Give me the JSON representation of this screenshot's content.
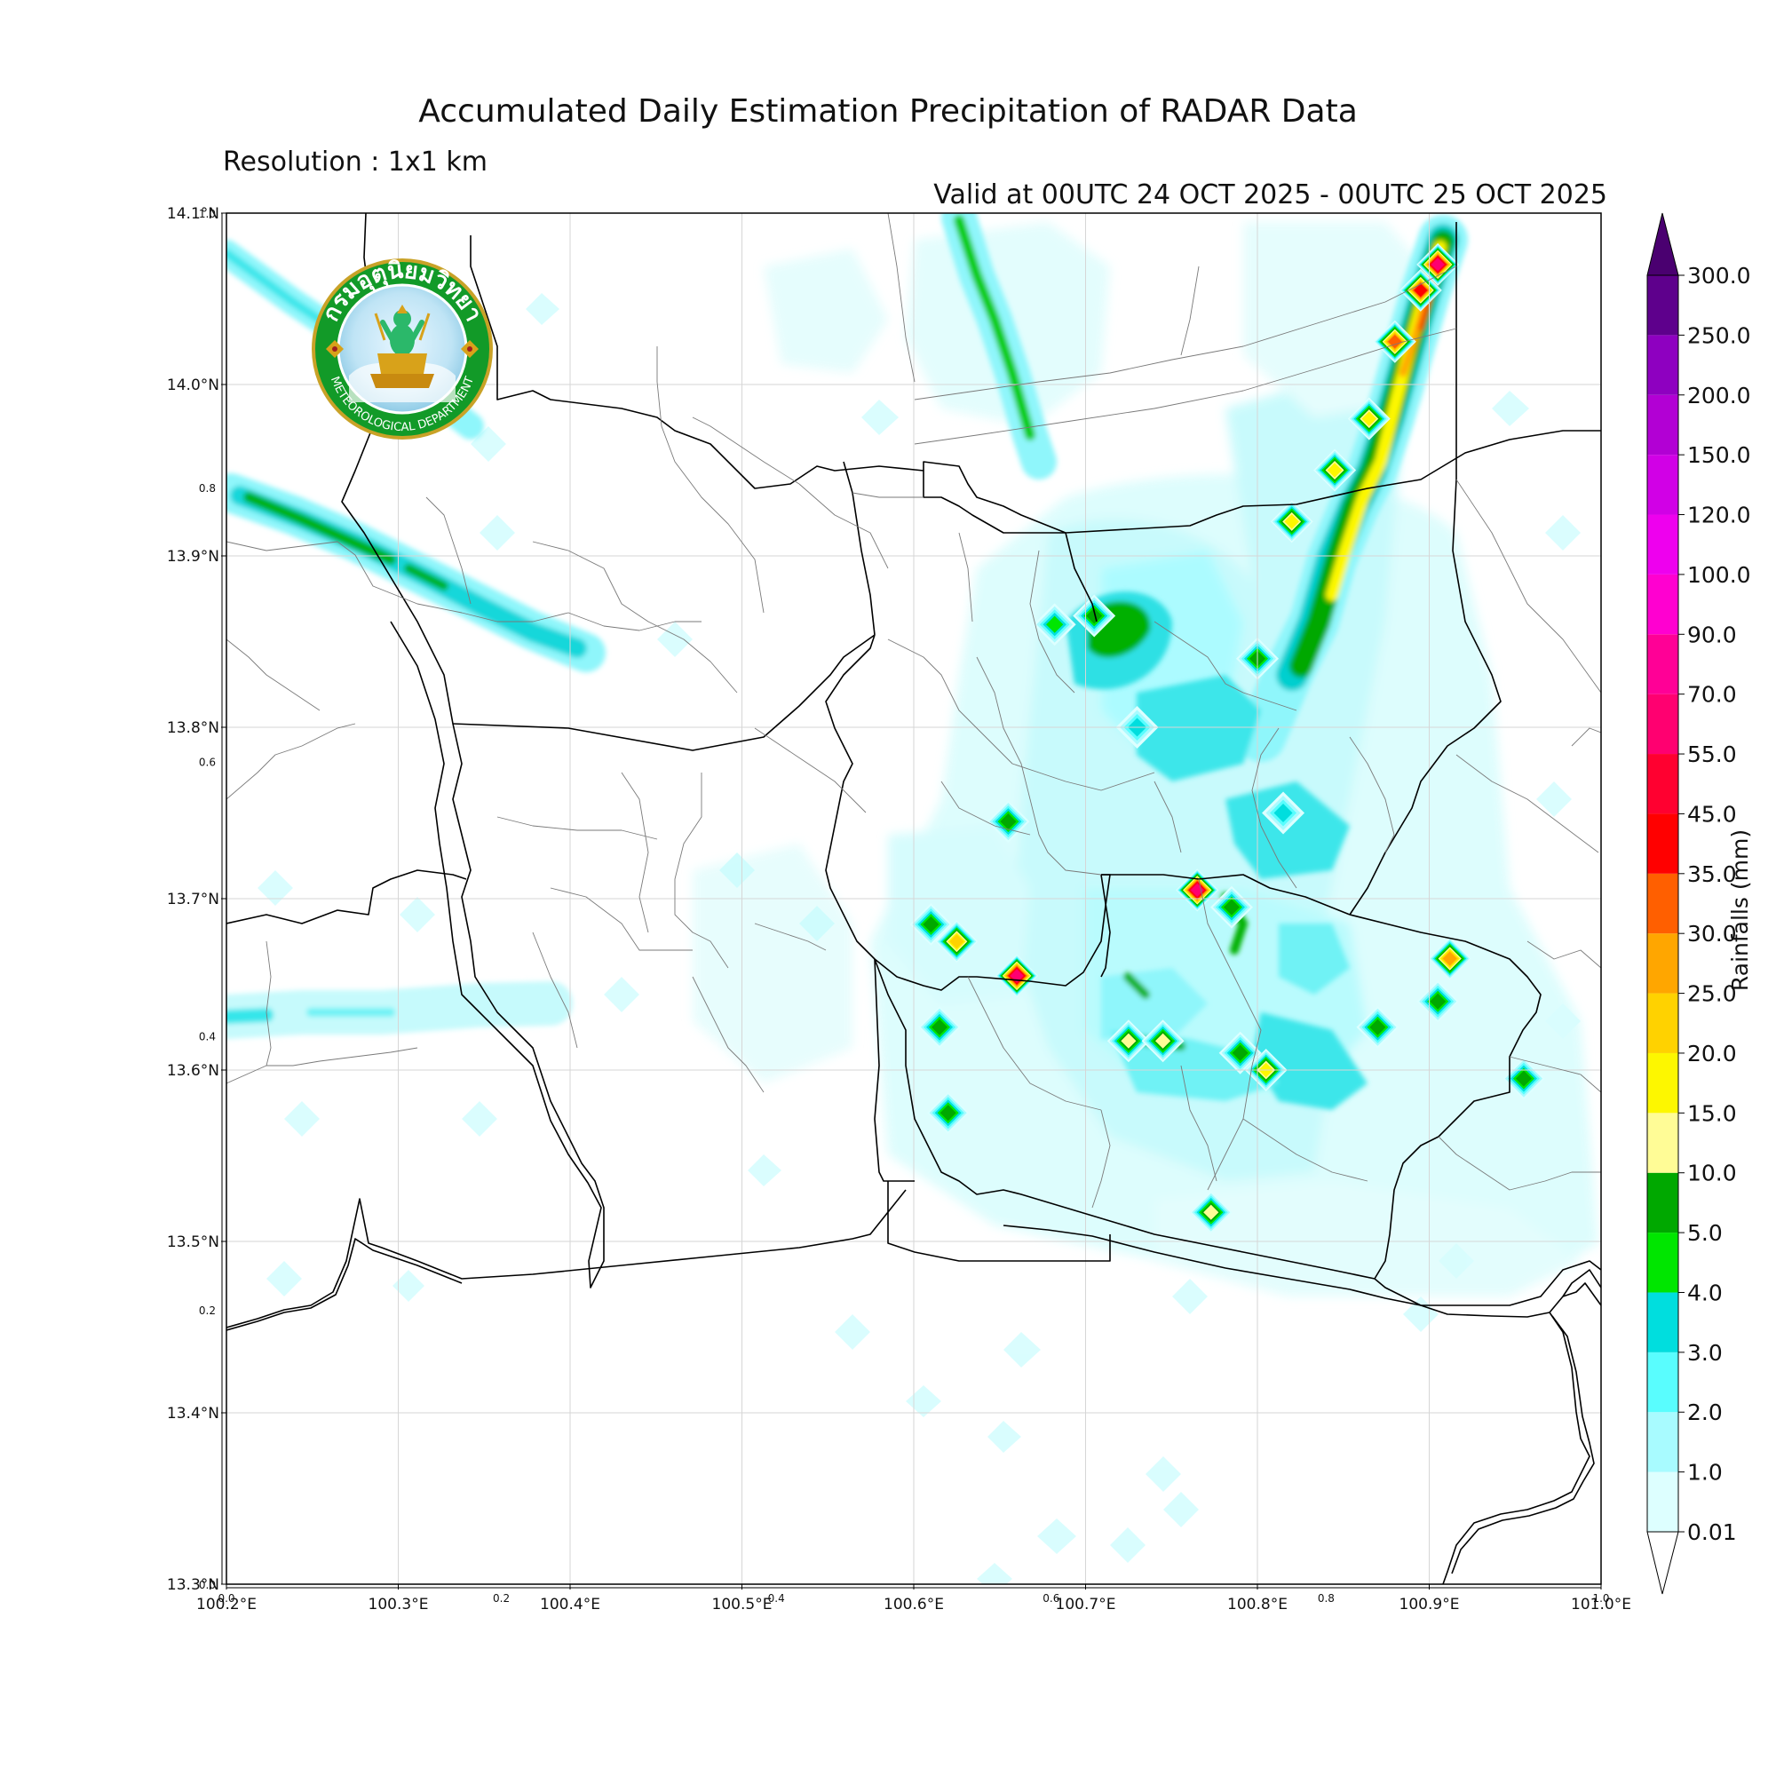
{
  "header": {
    "title": "Accumulated Daily Estimation Precipitation of RADAR Data",
    "resolution": "Resolution : 1x1 km",
    "valid": "Valid at 00UTC 24 OCT 2025 - 00UTC 25 OCT 2025"
  },
  "logo": {
    "text_top": "กรมอุตุนิยมวิทยา",
    "text_bottom": "METEOROLOGICAL DEPARTMENT"
  },
  "map": {
    "lon_ticks": [
      {
        "value": 100.2,
        "label": "100.2°E"
      },
      {
        "value": 100.3,
        "label": "100.3°E"
      },
      {
        "value": 100.4,
        "label": "100.4°E"
      },
      {
        "value": 100.5,
        "label": "100.5°E"
      },
      {
        "value": 100.6,
        "label": "100.6°E"
      },
      {
        "value": 100.7,
        "label": "100.7°E"
      },
      {
        "value": 100.8,
        "label": "100.8°E"
      },
      {
        "value": 100.9,
        "label": "100.9°E"
      },
      {
        "value": 101.0,
        "label": "101.0°E"
      }
    ],
    "lat_ticks": [
      {
        "value": 14.1,
        "label": "14.1°N"
      },
      {
        "value": 14.0,
        "label": "14.0°N"
      },
      {
        "value": 13.9,
        "label": "13.9°N"
      },
      {
        "value": 13.8,
        "label": "13.8°N"
      },
      {
        "value": 13.7,
        "label": "13.7°N"
      },
      {
        "value": 13.6,
        "label": "13.6°N"
      },
      {
        "value": 13.5,
        "label": "13.5°N"
      },
      {
        "value": 13.4,
        "label": "13.4°N"
      },
      {
        "value": 13.3,
        "label": "13.3°N"
      }
    ],
    "overlay_x_ticks": [
      "0.0",
      "0.2",
      "0.4",
      "0.6",
      "0.8",
      "1.0"
    ],
    "overlay_y_ticks": [
      "1.0",
      "0.8",
      "0.6",
      "0.4",
      "0.2",
      "0.0"
    ]
  },
  "colorbar": {
    "title": "Rainfalls (mm)",
    "levels": [
      "0.01",
      "1.0",
      "2.0",
      "3.0",
      "4.0",
      "5.0",
      "10.0",
      "15.0",
      "20.0",
      "25.0",
      "30.0",
      "35.0",
      "45.0",
      "55.0",
      "70.0",
      "90.0",
      "100.0",
      "120.0",
      "150.0",
      "200.0",
      "250.0",
      "300.0"
    ],
    "colors": [
      "#ddffff",
      "#a8fbff",
      "#59fdfe",
      "#00dede",
      "#00e600",
      "#00a800",
      "#fffc96",
      "#fdf700",
      "#ffd200",
      "#ffa600",
      "#ff5f00",
      "#ff0000",
      "#ff0030",
      "#ff0070",
      "#ff0096",
      "#ff00d0",
      "#ee00ee",
      "#d100e6",
      "#b200d4",
      "#8e00c0",
      "#5e008c"
    ],
    "over_color": "#4a0070"
  },
  "chart_data": {
    "type": "heatmap",
    "title": "Accumulated Daily Estimation Precipitation of RADAR Data",
    "xlim": [
      100.2,
      101.0
    ],
    "ylim": [
      13.3,
      14.1
    ],
    "colorbar_label": "Rainfalls (mm)",
    "rain_bands": [
      {
        "name": "",
        "path": [
          [
            100.2,
            13.98
          ],
          [
            100.25,
            13.95
          ],
          [
            100.3,
            13.92
          ]
        ],
        "intensity": 3.0
      },
      {
        "name": "",
        "path": [
          [
            100.2,
            13.92
          ],
          [
            100.28,
            13.89
          ],
          [
            100.35,
            13.875
          ],
          [
            100.42,
            13.86
          ],
          [
            100.45,
            13.845
          ]
        ],
        "intensity": 6.0
      },
      {
        "name": "",
        "path": [
          [
            100.2,
            13.665
          ],
          [
            100.35,
            13.665
          ]
        ],
        "intensity": 3.0
      },
      {
        "name": "",
        "path": [
          [
            100.625,
            14.095
          ],
          [
            100.66,
            14.02
          ],
          [
            100.68,
            13.95
          ]
        ],
        "intensity": 6.0
      },
      {
        "name": "",
        "path": [
          [
            100.905,
            14.075
          ],
          [
            100.89,
            14.02
          ],
          [
            100.87,
            13.97
          ],
          [
            100.84,
            13.92
          ],
          [
            100.82,
            13.87
          ]
        ],
        "intensity": 20.0
      }
    ],
    "rain_spots": [
      {
        "lon": 100.625,
        "lat": 13.675,
        "value": 20.0
      },
      {
        "lon": 100.66,
        "lat": 13.655,
        "value": 55.0
      },
      {
        "lon": 100.765,
        "lat": 13.705,
        "value": 55.0
      },
      {
        "lon": 100.912,
        "lat": 13.665,
        "value": 25.0
      },
      {
        "lon": 100.805,
        "lat": 13.6,
        "value": 15.0
      },
      {
        "lon": 100.725,
        "lat": 13.617,
        "value": 12.0
      },
      {
        "lon": 100.745,
        "lat": 13.617,
        "value": 12.0
      },
      {
        "lon": 100.773,
        "lat": 13.517,
        "value": 12.0
      },
      {
        "lon": 100.82,
        "lat": 13.92,
        "value": 15.0
      },
      {
        "lon": 100.845,
        "lat": 13.95,
        "value": 15.0
      },
      {
        "lon": 100.865,
        "lat": 13.98,
        "value": 15.0
      },
      {
        "lon": 100.88,
        "lat": 14.025,
        "value": 30.0
      },
      {
        "lon": 100.895,
        "lat": 14.055,
        "value": 35.0
      },
      {
        "lon": 100.905,
        "lat": 14.07,
        "value": 55.0
      },
      {
        "lon": 100.705,
        "lat": 13.865,
        "value": 8.0
      },
      {
        "lon": 100.682,
        "lat": 13.86,
        "value": 4.0
      },
      {
        "lon": 100.73,
        "lat": 13.8,
        "value": 3.0
      },
      {
        "lon": 100.785,
        "lat": 13.695,
        "value": 7.0
      },
      {
        "lon": 100.8,
        "lat": 13.84,
        "value": 5.0
      },
      {
        "lon": 100.815,
        "lat": 13.75,
        "value": 3.5
      },
      {
        "lon": 100.61,
        "lat": 13.685,
        "value": 6.0
      },
      {
        "lon": 100.62,
        "lat": 13.575,
        "value": 6.0
      },
      {
        "lon": 100.615,
        "lat": 13.625,
        "value": 6.0
      },
      {
        "lon": 100.655,
        "lat": 13.745,
        "value": 6.0
      },
      {
        "lon": 100.79,
        "lat": 13.61,
        "value": 6.0
      },
      {
        "lon": 100.905,
        "lat": 13.64,
        "value": 6.0
      },
      {
        "lon": 100.955,
        "lat": 13.595,
        "value": 5.0
      },
      {
        "lon": 100.87,
        "lat": 13.625,
        "value": 5.0
      }
    ]
  }
}
